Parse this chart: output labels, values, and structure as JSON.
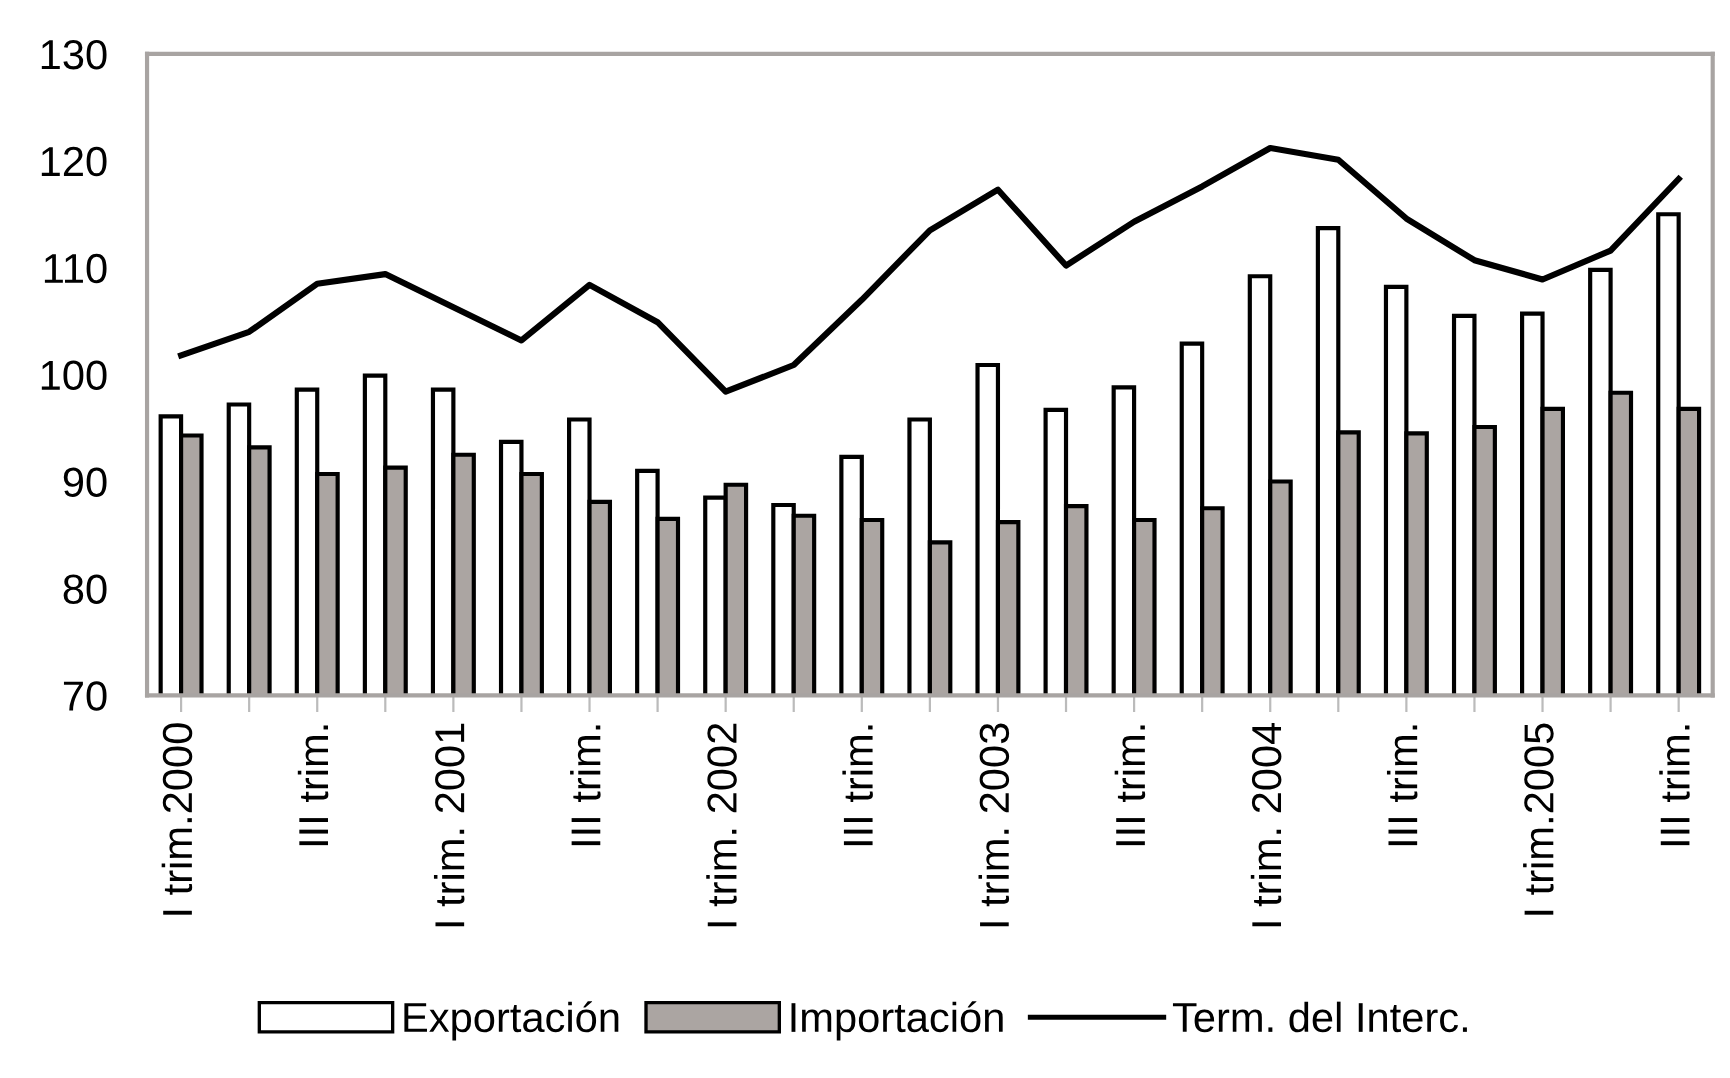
{
  "chart_data": {
    "type": "bar",
    "categories": [
      "I trim.2000",
      null,
      "III trim.",
      null,
      "I trim. 2001",
      null,
      "III trim.",
      null,
      "I trim. 2002",
      null,
      "III trim.",
      null,
      "I trim. 2003",
      null,
      "III trim.",
      null,
      "I trim. 2004",
      null,
      "III trim.",
      null,
      "I trim.2005",
      null,
      "III trim."
    ],
    "series": [
      {
        "name": "Exportación",
        "color": "#ffffff",
        "values": [
          96.1,
          97.2,
          98.6,
          99.9,
          98.6,
          93.7,
          95.8,
          91.0,
          88.5,
          87.8,
          92.3,
          95.8,
          100.9,
          96.7,
          98.8,
          102.9,
          109.2,
          113.7,
          108.2,
          105.5,
          105.7,
          109.8,
          115.0
        ]
      },
      {
        "name": "Importación",
        "color": "#aba5a2",
        "values": [
          94.3,
          93.2,
          90.7,
          91.3,
          92.5,
          90.7,
          88.1,
          86.5,
          89.7,
          86.8,
          86.4,
          84.3,
          86.2,
          87.7,
          86.4,
          87.5,
          90.0,
          94.6,
          94.5,
          95.1,
          96.8,
          98.3,
          96.8
        ]
      },
      {
        "name": "Term. del Interc.",
        "type": "line",
        "color": "#000000",
        "values": [
          101.8,
          104.0,
          108.5,
          109.4,
          106.3,
          103.2,
          108.4,
          104.9,
          98.4,
          100.9,
          107.0,
          113.5,
          117.3,
          110.2,
          114.3,
          117.6,
          121.2,
          120.1,
          114.6,
          110.7,
          108.9,
          111.6,
          118.3
        ]
      }
    ],
    "ylim": [
      70,
      130
    ],
    "yticks": [
      70,
      80,
      90,
      100,
      110,
      120,
      130
    ],
    "grid": false,
    "legend": "bottom",
    "marker": "none",
    "line_style": "solid"
  }
}
